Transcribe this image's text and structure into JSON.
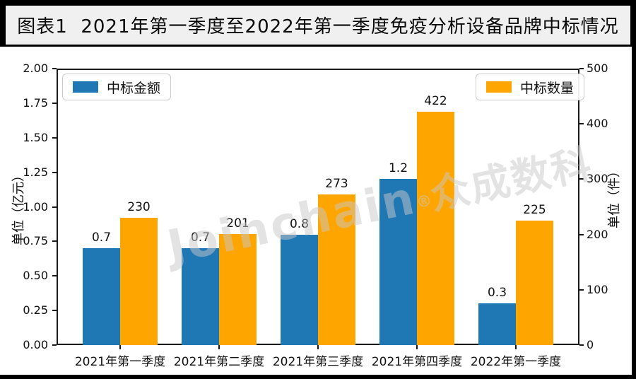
{
  "title_bar": {
    "text": "图表1  2021年第一季度至2022年第一季度免疫分析设备品牌中标情况",
    "bg": "#f0f0f0",
    "text_color": "#0a0a0a"
  },
  "colors": {
    "frame": "#000000",
    "panel_bg": "#ffffff",
    "spine": "#1a1a1a",
    "amount_blue": "#1f77b4",
    "count_orange": "#ffa500"
  },
  "watermark": {
    "latin": "Joinchain",
    "reg": "®",
    "cjk": "众成数科",
    "color": "#c8c8c8"
  },
  "chart_data": {
    "type": "bar",
    "categories": [
      "2021年第一季度",
      "2021年第二季度",
      "2021年第三季度",
      "2021年第四季度",
      "2022年第一季度"
    ],
    "series": [
      {
        "name": "中标金额",
        "axis": "left",
        "color": "#1f77b4",
        "values": [
          0.7,
          0.7,
          0.8,
          1.2,
          0.3
        ],
        "labels": [
          "0.7",
          "0.7",
          "0.8",
          "1.2",
          "0.3"
        ]
      },
      {
        "name": "中标数量",
        "axis": "right",
        "color": "#ffa500",
        "values": [
          230,
          201,
          273,
          422,
          225
        ],
        "labels": [
          "230",
          "201",
          "273",
          "422",
          "225"
        ]
      }
    ],
    "left_axis": {
      "label": "单位（亿元）",
      "min": 0,
      "max": 2,
      "ticks": [
        "0.00",
        "0.25",
        "0.50",
        "0.75",
        "1.00",
        "1.25",
        "1.50",
        "1.75",
        "2.00"
      ]
    },
    "right_axis": {
      "label": "单位（件）",
      "min": 0,
      "max": 500,
      "ticks": [
        "0",
        "100",
        "200",
        "300",
        "400",
        "500"
      ]
    },
    "grid": false,
    "legend_position": "inset upper-left (amount) and upper-right (count)"
  }
}
